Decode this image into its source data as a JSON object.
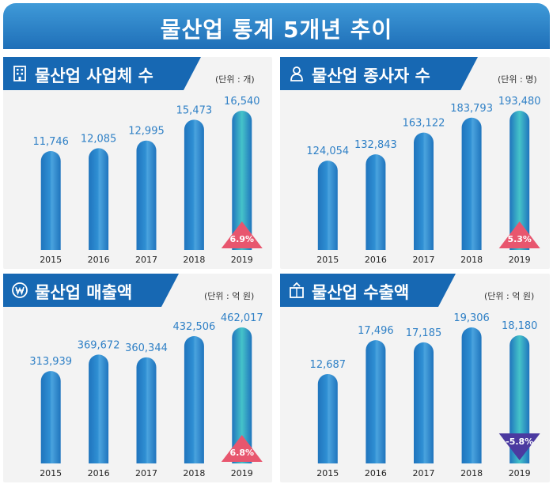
{
  "main_title": "물산업 통계 5개년 추이",
  "colors": {
    "bar": "#2f8fd3",
    "bar_dark": "#1f74bd",
    "bar_top": "#4aa3de",
    "bar_highlight": "#45c3c9",
    "triangle_up": "#e8566e",
    "triangle_down": "#4b3aa0",
    "value_text": "#2f80c6",
    "header": "#1768b3"
  },
  "panels": [
    {
      "title": "물산업 사업체 수",
      "unit": "(단위 : 개)",
      "icon": "building-icon",
      "change_label": "6.9%",
      "change_direction": "up"
    },
    {
      "title": "물산업 종사자 수",
      "unit": "(단위 : 명)",
      "icon": "person-icon",
      "change_label": "5.3%",
      "change_direction": "up"
    },
    {
      "title": "물산업 매출액",
      "unit": "(단위 : 억 원)",
      "icon": "won-coin-icon",
      "change_label": "6.8%",
      "change_direction": "up"
    },
    {
      "title": "물산업 수출액",
      "unit": "(단위 : 억 원)",
      "icon": "export-box-icon",
      "change_label": "-5.8%",
      "change_direction": "down"
    }
  ],
  "chart_data": [
    {
      "type": "bar",
      "title": "물산업 사업체 수",
      "categories": [
        "2015",
        "2016",
        "2017",
        "2018",
        "2019"
      ],
      "values": [
        11746,
        12085,
        12995,
        15473,
        16540
      ],
      "value_labels": [
        "11,746",
        "12,085",
        "12,995",
        "15,473",
        "16,540"
      ],
      "highlight_index": 4,
      "ylim": [
        0,
        16540
      ],
      "grid": false
    },
    {
      "type": "bar",
      "title": "물산업 종사자 수",
      "categories": [
        "2015",
        "2016",
        "2017",
        "2018",
        "2019"
      ],
      "values": [
        124054,
        132843,
        163122,
        183793,
        193480
      ],
      "value_labels": [
        "124,054",
        "132,843",
        "163,122",
        "183,793",
        "193,480"
      ],
      "highlight_index": 4,
      "ylim": [
        0,
        193480
      ],
      "grid": false
    },
    {
      "type": "bar",
      "title": "물산업 매출액",
      "categories": [
        "2015",
        "2016",
        "2017",
        "2018",
        "2019"
      ],
      "values": [
        313939,
        369672,
        360344,
        432506,
        462017
      ],
      "value_labels": [
        "313,939",
        "369,672",
        "360,344",
        "432,506",
        "462,017"
      ],
      "highlight_index": 4,
      "ylim": [
        0,
        462017
      ],
      "grid": false
    },
    {
      "type": "bar",
      "title": "물산업 수출액",
      "categories": [
        "2015",
        "2016",
        "2017",
        "2018",
        "2019"
      ],
      "values": [
        12687,
        17496,
        17185,
        19306,
        18180
      ],
      "value_labels": [
        "12,687",
        "17,496",
        "17,185",
        "19,306",
        "18,180"
      ],
      "highlight_index": 4,
      "ylim": [
        0,
        19306
      ],
      "grid": false
    }
  ]
}
